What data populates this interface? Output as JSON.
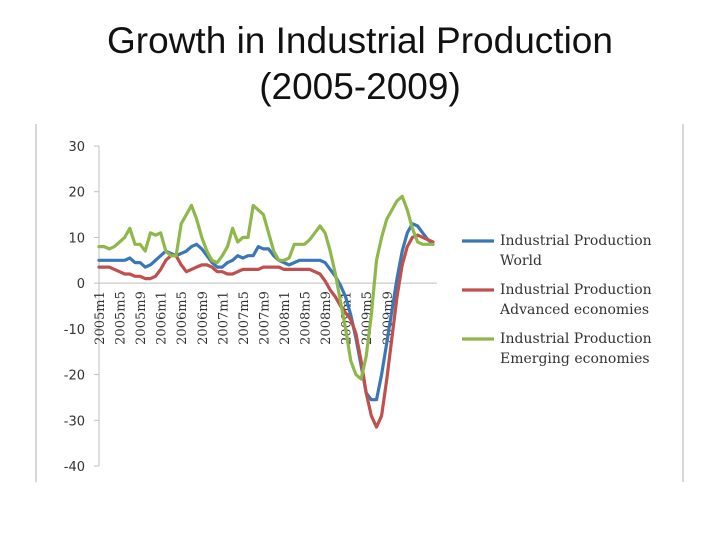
{
  "slide": {
    "title_line1": "Growth in Industrial Production",
    "title_line2": "(2005-2009)"
  },
  "chart_data": {
    "type": "line",
    "title": "",
    "xlabel": "",
    "ylabel": "",
    "ylim": [
      -40,
      30
    ],
    "yticks": [
      30,
      20,
      10,
      0,
      -10,
      -20,
      -30,
      -40
    ],
    "x_tick_labels": [
      "2005m1",
      "2005m5",
      "2005m9",
      "2006m1",
      "2006m5",
      "2006m9",
      "2007m1",
      "2007m5",
      "2007m9",
      "2008m1",
      "2008m5",
      "2008m9",
      "2009m1",
      "2009m5",
      "2009m9"
    ],
    "legend_position": "right",
    "grid": false,
    "series": [
      {
        "name": "Industrial Production World",
        "legend_lines": [
          "Industrial Production",
          "World"
        ],
        "color": "#3a77b5",
        "values": [
          5,
          5,
          5,
          5,
          5,
          5,
          5.5,
          4.5,
          4.5,
          3.5,
          4,
          5,
          6,
          7,
          6.5,
          6,
          6.5,
          7,
          8,
          8.5,
          7.5,
          6,
          4.5,
          3.5,
          3.5,
          4.5,
          5,
          6,
          5.5,
          6,
          6,
          8,
          7.5,
          7.5,
          6,
          5,
          4.5,
          4,
          4.5,
          5,
          5,
          5,
          5,
          5,
          4.5,
          3,
          1.5,
          -0.5,
          -3,
          -7,
          -12,
          -18,
          -24,
          -25.5,
          -25.5,
          -20,
          -13,
          -6,
          1,
          7,
          11,
          13,
          12.5,
          11,
          9.5,
          8.5
        ]
      },
      {
        "name": "Industrial Production Advanced economies",
        "legend_lines": [
          "Industrial Production",
          "Advanced economies"
        ],
        "color": "#c0504d",
        "values": [
          3.5,
          3.5,
          3.5,
          3,
          2.5,
          2,
          2,
          1.5,
          1.5,
          1,
          1,
          1.5,
          3,
          5,
          6,
          6,
          4,
          2.5,
          3,
          3.5,
          4,
          4,
          3.5,
          2.5,
          2.5,
          2,
          2,
          2.5,
          3,
          3,
          3,
          3,
          3.5,
          3.5,
          3.5,
          3.5,
          3,
          3,
          3,
          3,
          3,
          3,
          2.5,
          2,
          0.5,
          -1.5,
          -3,
          -5,
          -6.5,
          -8,
          -11,
          -17,
          -24,
          -29,
          -31.5,
          -29,
          -21,
          -12,
          -3,
          4,
          8,
          10,
          10.5,
          10,
          9.5,
          9
        ]
      },
      {
        "name": "Industrial Production Emerging economies",
        "legend_lines": [
          "Industrial Production",
          "Emerging economies"
        ],
        "color": "#8fb84b",
        "values": [
          8,
          8,
          7.5,
          8,
          9,
          10,
          12,
          8.5,
          8.5,
          7,
          11,
          10.5,
          11,
          7,
          6,
          6,
          13,
          15,
          17,
          14,
          10,
          7,
          5,
          4.5,
          6,
          8,
          12,
          9,
          10,
          10,
          17,
          16,
          15,
          11,
          7,
          5,
          5,
          5.5,
          8.5,
          8.5,
          8.5,
          9.5,
          11,
          12.5,
          11,
          7,
          2,
          -4,
          -10,
          -17,
          -20,
          -21,
          -16,
          -7,
          5,
          10,
          14,
          16,
          18,
          19,
          16,
          12,
          9,
          8.5,
          8.5,
          8.5
        ]
      }
    ]
  }
}
